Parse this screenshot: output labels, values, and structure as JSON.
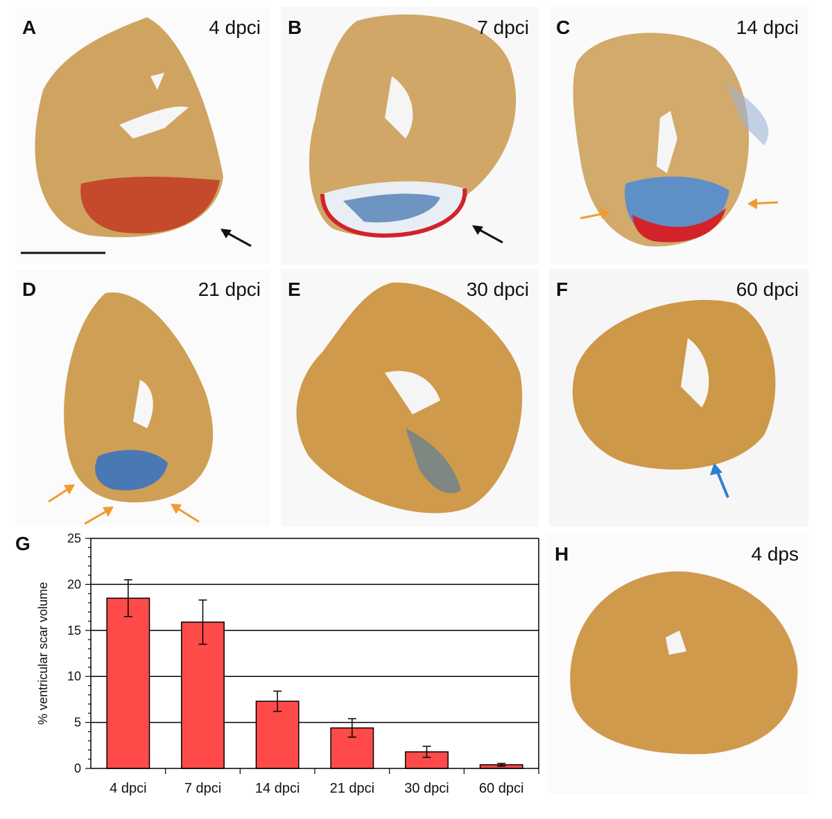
{
  "panels": [
    {
      "label": "A",
      "time": "4 dpci"
    },
    {
      "label": "B",
      "time": "7 dpci"
    },
    {
      "label": "C",
      "time": "14 dpci"
    },
    {
      "label": "D",
      "time": "21 dpci"
    },
    {
      "label": "E",
      "time": "30 dpci"
    },
    {
      "label": "F",
      "time": "60 dpci"
    },
    {
      "label": "H",
      "time": "4 dps"
    }
  ],
  "chart_panel_label": "G",
  "colors": {
    "tissue": "#c89446",
    "scar_red": "#d2232a",
    "scar_blue": "#3b6fb0",
    "arrow_orange": "#f39a2e",
    "arrow_black": "#111111",
    "arrow_blue": "#2f7fd0",
    "bar": "#ff4a4a"
  },
  "chart_data": {
    "type": "bar",
    "categories": [
      "4 dpci",
      "7 dpci",
      "14 dpci",
      "21 dpci",
      "30 dpci",
      "60 dpci"
    ],
    "values": [
      18.5,
      15.9,
      7.3,
      4.4,
      1.8,
      0.4
    ],
    "errors": [
      2.0,
      2.4,
      1.1,
      1.0,
      0.6,
      0.15
    ],
    "ylabel": "% ventricular scar volume",
    "xlabel": "",
    "ylim": [
      0,
      25
    ],
    "yticks": [
      0,
      5,
      10,
      15,
      20,
      25
    ],
    "grid": true
  }
}
